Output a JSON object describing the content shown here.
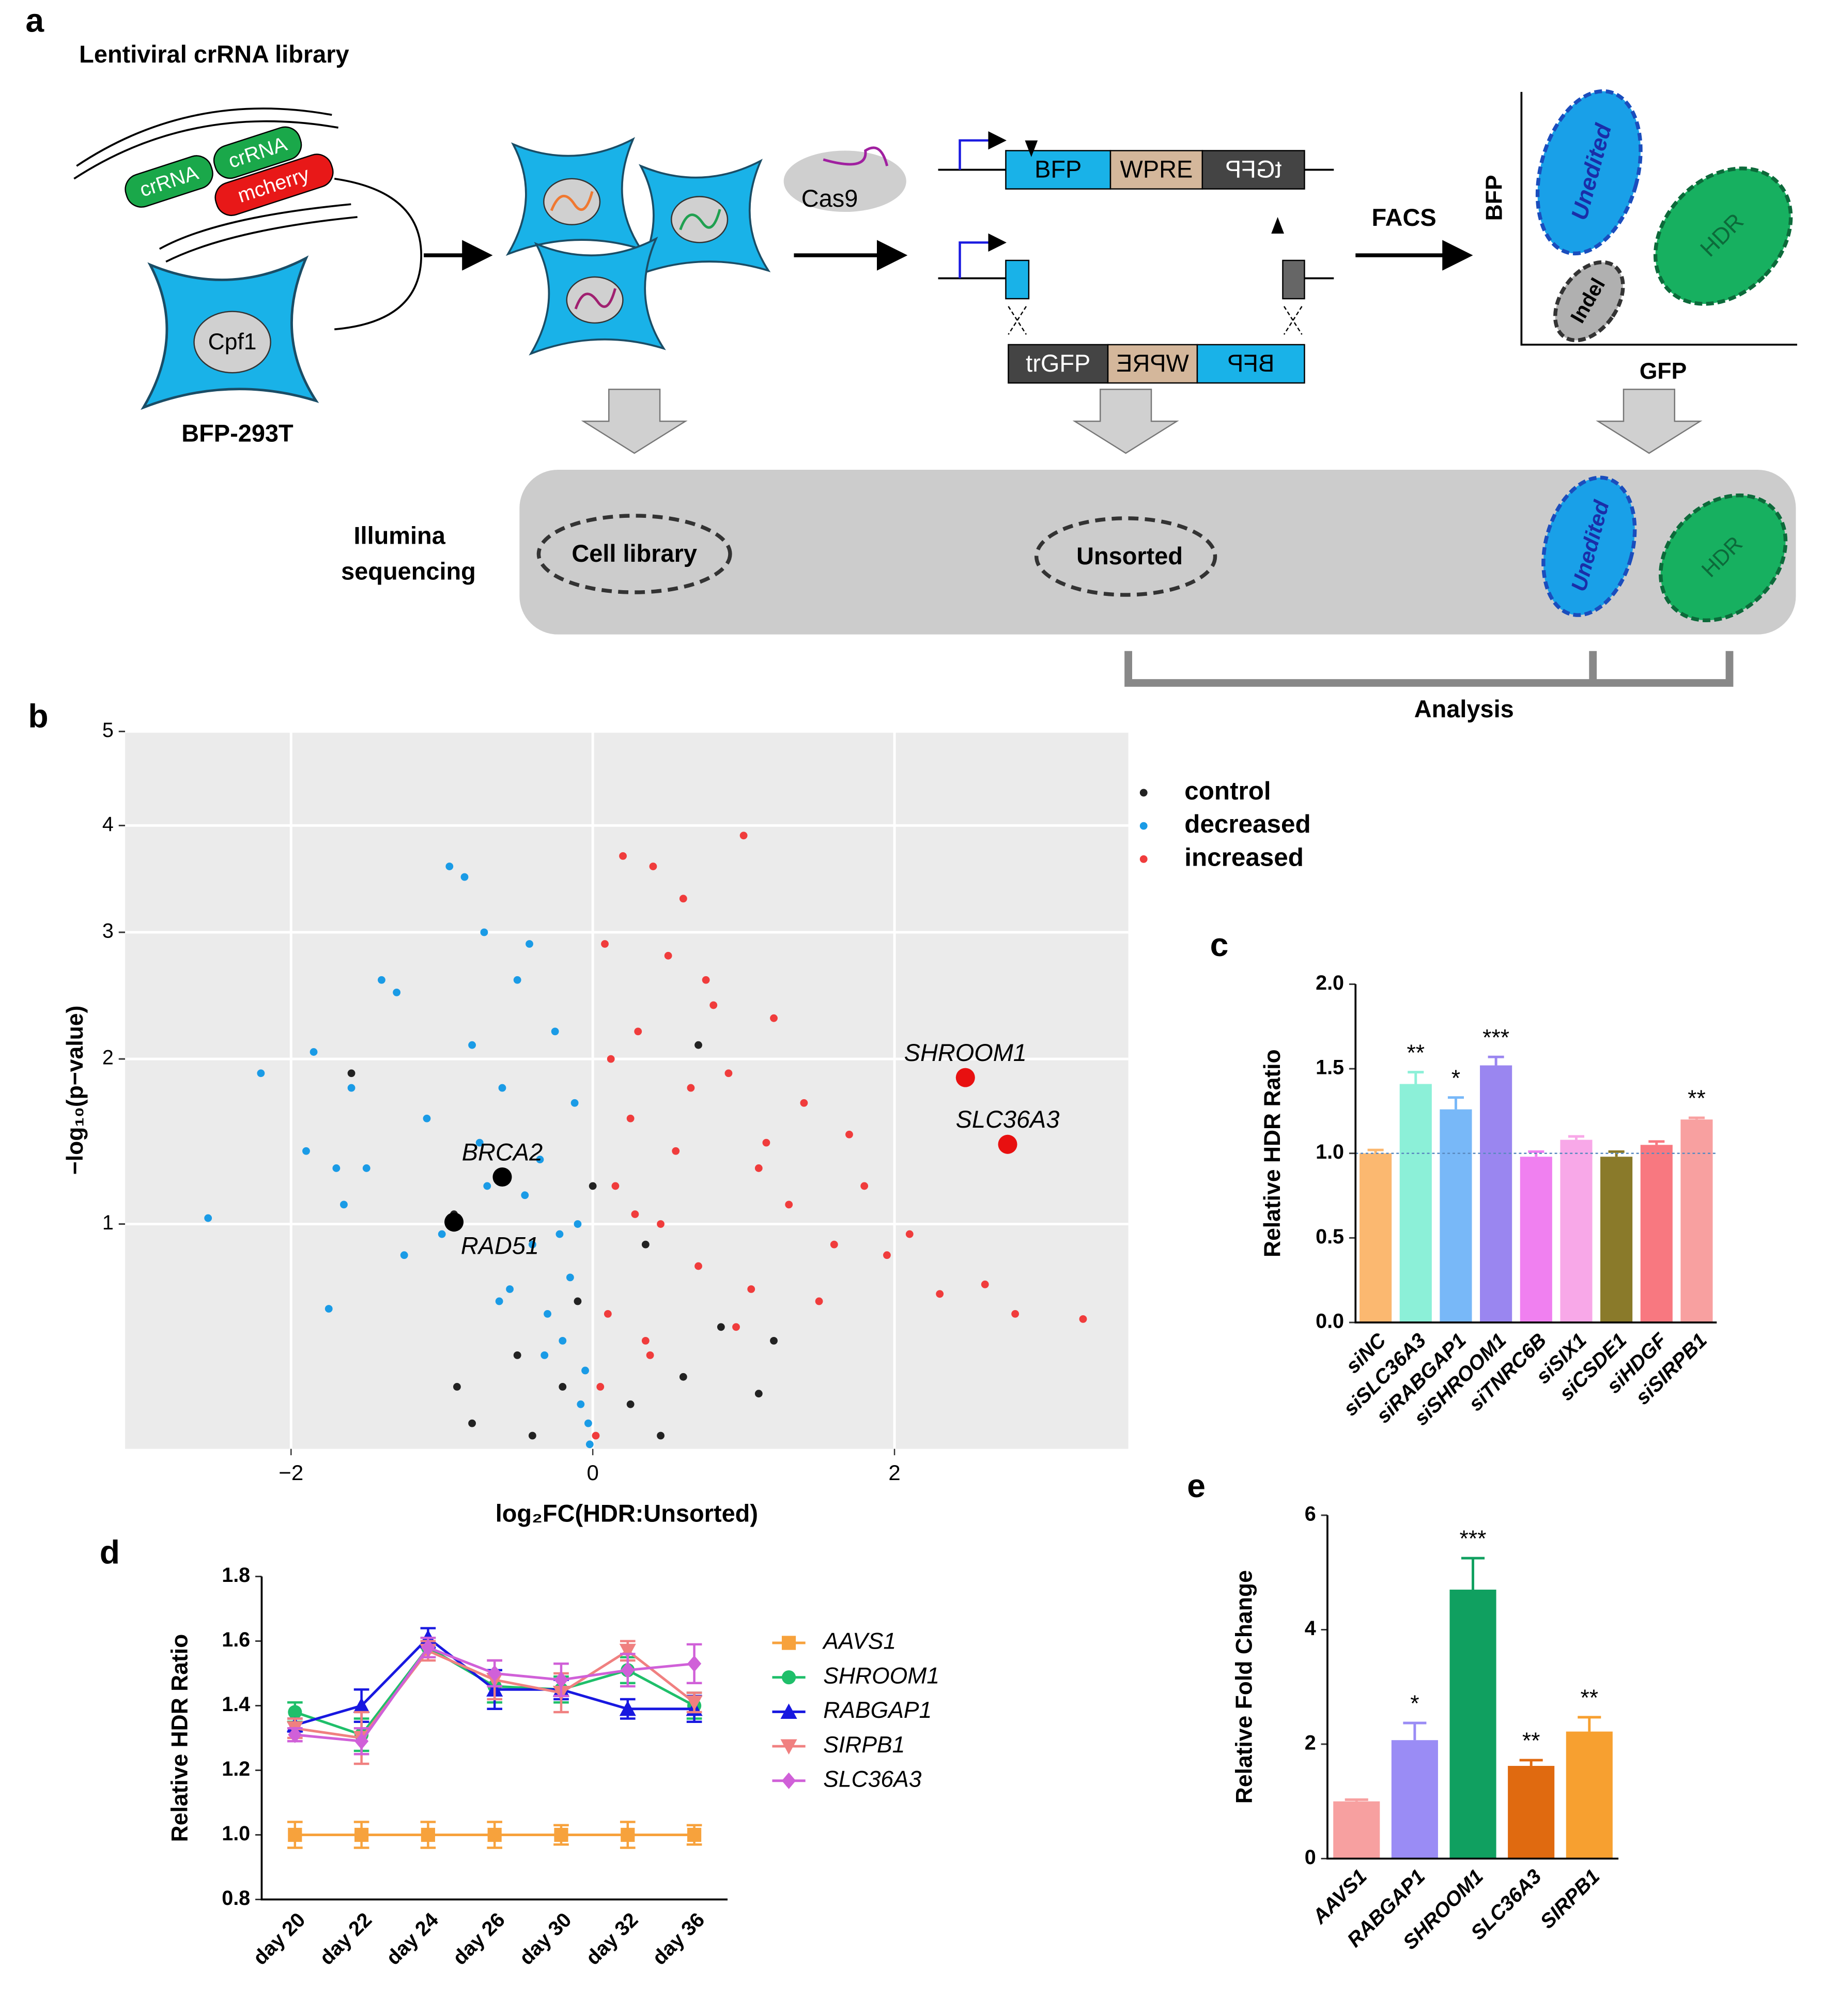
{
  "diagram": {
    "panel": "a",
    "library_title": "Lentiviral crRNA library",
    "crrna": [
      "crRNA",
      "crRNA"
    ],
    "mcherry": "mcherry",
    "cpf1": "Cpf1",
    "cell_line": "BFP-293T",
    "cas9": "Cas9",
    "reporter_top": [
      "BFP",
      "WPRE",
      "tGFP"
    ],
    "reporter_bottom": [
      "trGFP",
      "WPRE",
      "BFP"
    ],
    "facs": "FACS",
    "facs_plot": {
      "y": "BFP",
      "x": "GFP",
      "gates": [
        "Unedited",
        "HDR",
        "Indel"
      ]
    },
    "sequencing": [
      "Illumina",
      "sequencing"
    ],
    "samples": [
      "Cell library",
      "Unsorted",
      "Unedited",
      "HDR"
    ],
    "analysis": "Analysis"
  },
  "chart_data": [
    {
      "type": "scatter",
      "panel": "b",
      "xlabel": "log₂FC(HDR:Unsorted)",
      "ylabel": "−log₁₀(p−value)",
      "yscale": "sqrt",
      "xlim": [
        -3.1,
        3.55
      ],
      "ylim": [
        0.19,
        5
      ],
      "xticks": [
        {
          "value": -2,
          "label": "−2"
        },
        0,
        2
      ],
      "yticks": [
        1,
        2,
        3,
        4,
        5
      ],
      "grid": true,
      "legend": "right",
      "series": [
        {
          "name": "control",
          "color": "#222222",
          "x": [
            -1.6,
            -0.9,
            -0.8,
            -0.5,
            -0.4,
            -0.2,
            0.0,
            0.25,
            0.45,
            0.6,
            0.85,
            1.1,
            1.2,
            -0.92,
            -0.1,
            0.35,
            0.7
          ],
          "values": [
            1.9,
            0.35,
            0.25,
            0.45,
            0.22,
            0.35,
            1.2,
            0.3,
            0.22,
            0.38,
            0.55,
            0.33,
            0.5,
            1.05,
            0.65,
            0.9,
            2.1
          ]
        },
        {
          "name": "decreased",
          "color": "#1a9be6",
          "x": [
            -2.55,
            -2.2,
            -1.9,
            -1.85,
            -1.75,
            -1.65,
            -1.5,
            -1.4,
            -1.3,
            -1.25,
            -1.1,
            -1.0,
            -0.95,
            -0.85,
            -0.8,
            -0.75,
            -0.7,
            -0.6,
            -0.55,
            -0.5,
            -0.45,
            -0.4,
            -0.35,
            -0.3,
            -0.25,
            -0.2,
            -0.15,
            -0.1,
            -0.08,
            -0.05,
            -0.03,
            -0.12,
            -0.22,
            -0.32,
            -0.42,
            -0.62,
            -0.72,
            -1.7,
            -1.6,
            -0.02
          ],
          "values": [
            1.03,
            1.9,
            1.4,
            2.05,
            0.62,
            1.1,
            1.3,
            2.6,
            2.5,
            0.85,
            1.6,
            0.95,
            3.6,
            3.5,
            2.1,
            1.45,
            1.2,
            1.8,
            0.7,
            2.6,
            1.15,
            0.9,
            1.35,
            0.6,
            2.2,
            0.5,
            0.75,
            1.0,
            0.3,
            0.4,
            0.25,
            1.7,
            0.95,
            0.45,
            2.9,
            0.65,
            3.0,
            1.3,
            1.8,
            0.2
          ]
        },
        {
          "name": "increased",
          "color": "#f03c3c",
          "x": [
            0.02,
            0.05,
            0.08,
            0.1,
            0.15,
            0.2,
            0.25,
            0.3,
            0.35,
            0.4,
            0.45,
            0.5,
            0.55,
            0.6,
            0.7,
            0.8,
            0.9,
            1.0,
            1.05,
            1.1,
            1.2,
            1.3,
            1.4,
            1.5,
            1.6,
            1.7,
            1.8,
            1.95,
            2.1,
            2.3,
            2.6,
            2.8,
            3.25,
            0.12,
            0.28,
            0.38,
            0.65,
            0.75,
            0.95,
            1.15
          ],
          "values": [
            0.22,
            0.35,
            2.9,
            0.6,
            1.2,
            3.7,
            1.6,
            2.2,
            0.5,
            3.6,
            1.0,
            2.8,
            1.4,
            3.3,
            0.8,
            2.4,
            1.9,
            3.9,
            0.7,
            1.3,
            2.3,
            1.1,
            1.7,
            0.65,
            0.9,
            1.5,
            1.2,
            0.85,
            0.95,
            0.68,
            0.72,
            0.6,
            0.58,
            2.0,
            1.05,
            0.45,
            1.8,
            2.6,
            0.55,
            1.45
          ]
        }
      ],
      "highlights": [
        {
          "label": "SHROOM1",
          "x": 2.47,
          "value": 1.87,
          "color": "#e81010"
        },
        {
          "label": "SLC36A3",
          "x": 2.75,
          "value": 1.44,
          "color": "#e81010"
        },
        {
          "label": "BRCA2",
          "x": -0.6,
          "value": 1.25,
          "color": "#000000"
        },
        {
          "label": "RAD51",
          "x": -0.92,
          "value": 1.01,
          "color": "#000000"
        }
      ]
    },
    {
      "type": "bar",
      "panel": "c",
      "ylabel": "Relative HDR Ratio",
      "categories": [
        "siNC",
        "siSLC36A3",
        "siRABGAP1",
        "siSHROOM1",
        "siTNRC6B",
        "siSIX1",
        "siCSDE1",
        "siHDGF",
        "siSIRPB1"
      ],
      "values": [
        1.0,
        1.41,
        1.26,
        1.52,
        0.98,
        1.08,
        0.98,
        1.05,
        1.2
      ],
      "errors": [
        0.02,
        0.07,
        0.07,
        0.05,
        0.03,
        0.02,
        0.03,
        0.02,
        0.01
      ],
      "colors": [
        "#fbb870",
        "#8cf0d8",
        "#78b8f8",
        "#9a86f0",
        "#f080f0",
        "#f8a8e8",
        "#8a7a2a",
        "#f87880",
        "#f8a0a0"
      ],
      "significance": [
        null,
        "**",
        "*",
        "***",
        null,
        null,
        null,
        null,
        "**"
      ],
      "refline": 1,
      "ylim": [
        0,
        2
      ],
      "yticks": [
        {
          "value": 0,
          "label": "0.0"
        },
        {
          "value": 0.5,
          "label": "0.5"
        },
        {
          "value": 1,
          "label": "1.0"
        },
        {
          "value": 1.5,
          "label": "1.5"
        },
        {
          "value": 2,
          "label": "2.0"
        }
      ]
    },
    {
      "type": "line",
      "panel": "d",
      "ylabel": "Relative HDR Ratio",
      "categories": [
        "day 20",
        "day 22",
        "day 24",
        "day 26",
        "day 30",
        "day 32",
        "day 36"
      ],
      "ylim": [
        0.8,
        1.8
      ],
      "yticks": [
        0.8,
        {
          "value": 1,
          "label": "1.0"
        },
        1.2,
        1.4,
        1.6,
        1.8
      ],
      "legend": "right",
      "series": [
        {
          "name": "AAVS1",
          "color": "#f7a23c",
          "marker": "square",
          "values": [
            1.0,
            1.0,
            1.0,
            1.0,
            1.0,
            1.0,
            1.0
          ],
          "errors": [
            0.04,
            0.04,
            0.04,
            0.04,
            0.03,
            0.04,
            0.03
          ]
        },
        {
          "name": "SHROOM1",
          "color": "#1fbf6a",
          "marker": "circle",
          "values": [
            1.38,
            1.31,
            1.58,
            1.46,
            1.45,
            1.51,
            1.4
          ],
          "errors": [
            0.03,
            0.05,
            0.03,
            0.05,
            0.04,
            0.04,
            0.04
          ]
        },
        {
          "name": "RABGAP1",
          "color": "#1818e0",
          "marker": "triangle",
          "values": [
            1.34,
            1.4,
            1.61,
            1.45,
            1.45,
            1.39,
            1.39
          ],
          "errors": [
            0.02,
            0.05,
            0.03,
            0.06,
            0.03,
            0.03,
            0.04
          ]
        },
        {
          "name": "SIRPB1",
          "color": "#f08080",
          "marker": "triangle-down",
          "values": [
            1.33,
            1.3,
            1.57,
            1.48,
            1.44,
            1.57,
            1.41
          ],
          "errors": [
            0.03,
            0.08,
            0.03,
            0.06,
            0.06,
            0.03,
            0.03
          ]
        },
        {
          "name": "SLC36A3",
          "color": "#d060d8",
          "marker": "diamond",
          "values": [
            1.31,
            1.29,
            1.58,
            1.5,
            1.48,
            1.51,
            1.53
          ],
          "errors": [
            0.02,
            0.04,
            0.03,
            0.04,
            0.05,
            0.05,
            0.06
          ]
        }
      ]
    },
    {
      "type": "bar",
      "panel": "e",
      "ylabel": "Relative Fold Change",
      "categories": [
        "AAVS1",
        "RABGAP1",
        "SHROOM1",
        "SLC36A3",
        "SIRPB1"
      ],
      "values": [
        1.0,
        2.07,
        4.7,
        1.62,
        2.22
      ],
      "errors": [
        0.03,
        0.3,
        0.55,
        0.1,
        0.25
      ],
      "colors": [
        "#f7a0a0",
        "#9a8cf5",
        "#10a060",
        "#e06a10",
        "#f7a030"
      ],
      "significance": [
        null,
        "*",
        "***",
        "**",
        "**"
      ],
      "ylim": [
        0,
        6
      ],
      "yticks": [
        0,
        2,
        4,
        6
      ]
    }
  ]
}
